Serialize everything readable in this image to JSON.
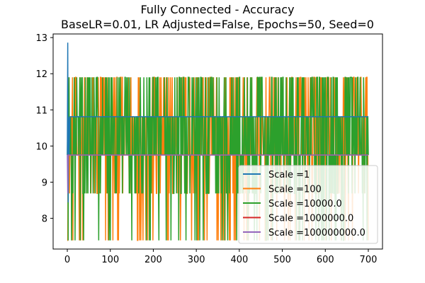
{
  "chart_data": {
    "type": "line",
    "title": "Fully Connected - Accuracy",
    "subtitle": "BaseLR=0.01, LR Adjusted=False, Epochs=50, Seed=0",
    "xlabel": "",
    "ylabel": "",
    "xlim": [
      -33,
      733
    ],
    "ylim": [
      7.15,
      13.1
    ],
    "xticks": [
      0,
      100,
      200,
      300,
      400,
      500,
      600,
      700
    ],
    "yticks": [
      8,
      9,
      10,
      11,
      12,
      13
    ],
    "grid": false,
    "legend_position": "lower-right",
    "levels": [
      7.39,
      8.69,
      9.75,
      10.81,
      11.9
    ],
    "series": [
      {
        "name": "Scale =1",
        "color": "#1f77b4",
        "points": [
          [
            0,
            9.75
          ],
          [
            1,
            12.86
          ],
          [
            2,
            8.44
          ],
          [
            3,
            10.8
          ],
          [
            4,
            9.75
          ],
          [
            6,
            10.81
          ],
          [
            10,
            10.81
          ],
          [
            14,
            10.81
          ],
          [
            700,
            10.81
          ]
        ]
      },
      {
        "name": "Scale =100",
        "color": "#ff7f0e",
        "x_range": [
          0,
          700
        ],
        "levels_used": [
          7.39,
          8.69,
          9.75,
          10.81,
          11.9
        ],
        "oscillating": true
      },
      {
        "name": "Scale =10000.0",
        "color": "#2ca02c",
        "x_range": [
          0,
          700
        ],
        "levels_used": [
          7.39,
          8.69,
          9.75,
          10.81,
          11.9
        ],
        "oscillating": true
      },
      {
        "name": "Scale =1000000.0",
        "color": "#d62728",
        "points": [
          [
            0,
            9.75
          ],
          [
            700,
            9.75
          ]
        ]
      },
      {
        "name": "Scale =100000000.0",
        "color": "#9467bd",
        "points": [
          [
            0,
            9.75
          ],
          [
            1,
            8.69
          ],
          [
            2,
            9.75
          ],
          [
            700,
            9.75
          ]
        ]
      }
    ]
  }
}
